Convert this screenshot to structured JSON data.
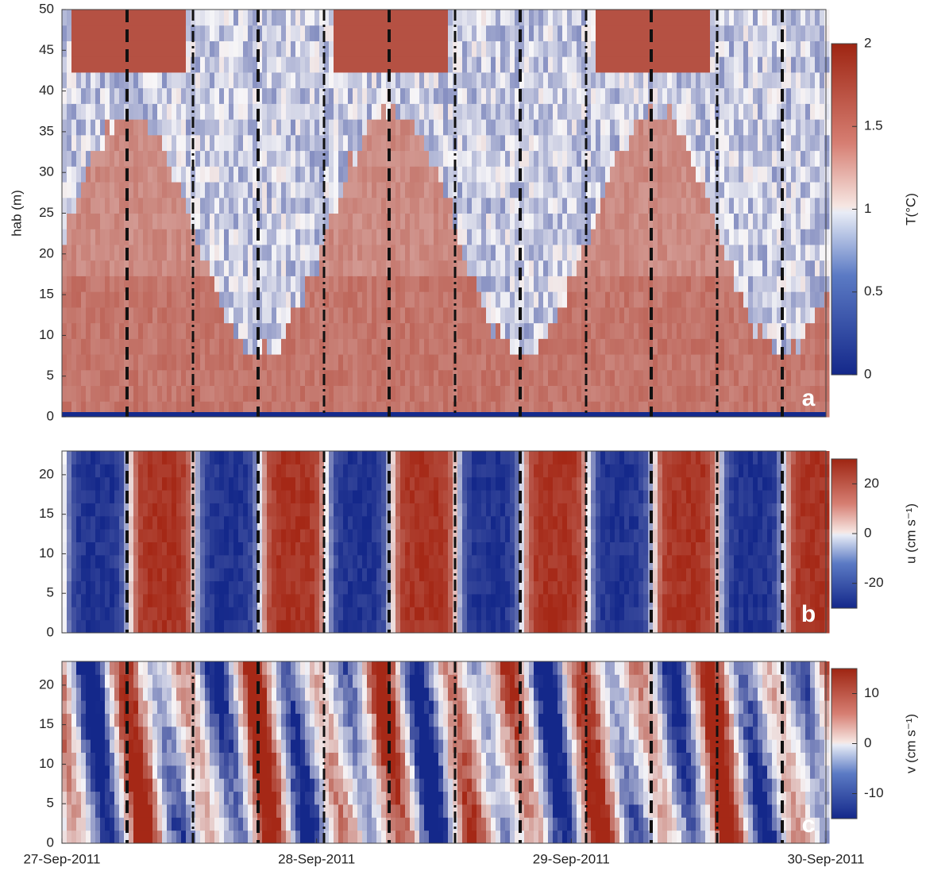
{
  "chart_data": [
    {
      "type": "heatmap",
      "ylabel": "hab (m)",
      "ylim": [
        0,
        50
      ],
      "yticks": [
        0,
        5,
        10,
        15,
        20,
        25,
        30,
        35,
        40,
        45,
        50
      ],
      "colorbar": {
        "label": "T(°C)",
        "lim": [
          0,
          2
        ],
        "ticks": [
          0,
          0.5,
          1,
          1.5,
          2
        ]
      },
      "panel_label": "a"
    },
    {
      "type": "heatmap",
      "ylim": [
        0,
        23
      ],
      "yticks": [
        0,
        5,
        10,
        15,
        20
      ],
      "colorbar": {
        "label": "u (cm s⁻¹)",
        "lim": [
          -30,
          30
        ],
        "ticks": [
          -20,
          0,
          20
        ]
      },
      "panel_label": "b"
    },
    {
      "type": "heatmap",
      "ylim": [
        0,
        23
      ],
      "yticks": [
        0,
        5,
        10,
        15,
        20
      ],
      "colorbar": {
        "label": "v (cm s⁻¹)",
        "lim": [
          -15,
          15
        ],
        "ticks": [
          -10,
          0,
          10
        ]
      },
      "panel_label": "c",
      "xlim": [
        0,
        3
      ],
      "xticks": [
        {
          "value": 0,
          "label": "27-Sep-2011"
        },
        {
          "value": 1,
          "label": "28-Sep-2011"
        },
        {
          "value": 2,
          "label": "29-Sep-2011"
        },
        {
          "value": 3,
          "label": "30-Sep-2011"
        }
      ]
    }
  ]
}
